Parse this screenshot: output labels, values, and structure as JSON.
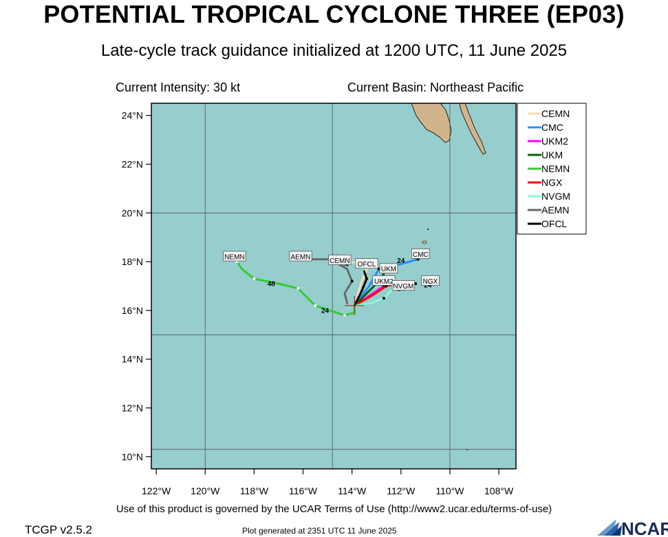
{
  "header": {
    "title": "POTENTIAL TROPICAL CYCLONE THREE (EP03)",
    "subtitle": "Late-cycle track guidance initialized at 1200 UTC, 11 June 2025",
    "current_intensity": "Current Intensity: 30 kt",
    "current_basin": "Current Basin: Northeast Pacific"
  },
  "footer": {
    "terms": "Use of this product is governed by the UCAR Terms of Use (http://www2.ucar.edu/terms-of-use)",
    "version": "TCGP v2.5.2",
    "generated": "Plot generated at 2351 UTC   11 June 2025",
    "logo_text": "NCAR"
  },
  "colors": {
    "ocean": "#96cdcd",
    "land": "#d2b48c",
    "grid": "#555555"
  },
  "chart_data": {
    "type": "line",
    "lon_range": [
      -122.2,
      -107.3
    ],
    "lat_range": [
      9.5,
      24.5
    ],
    "x_ticks": [
      {
        "value": -122,
        "label": "122°W"
      },
      {
        "value": -120,
        "label": "120°W"
      },
      {
        "value": -118,
        "label": "118°W"
      },
      {
        "value": -116,
        "label": "116°W"
      },
      {
        "value": -114,
        "label": "114°W"
      },
      {
        "value": -112,
        "label": "112°W"
      },
      {
        "value": -110,
        "label": "110°W"
      },
      {
        "value": -108,
        "label": "108°W"
      }
    ],
    "y_ticks": [
      {
        "value": 10,
        "label": "10°N"
      },
      {
        "value": 12,
        "label": "12°N"
      },
      {
        "value": 14,
        "label": "14°N"
      },
      {
        "value": 16,
        "label": "16°N"
      },
      {
        "value": 18,
        "label": "18°N"
      },
      {
        "value": 20,
        "label": "20°N"
      },
      {
        "value": 22,
        "label": "22°N"
      },
      {
        "value": 24,
        "label": "24°N"
      }
    ],
    "grid_lons": [
      -120,
      -114.8,
      -110
    ],
    "grid_lats": [
      10.3,
      15.0,
      20.0
    ],
    "initial_position": {
      "lon": -113.9,
      "lat": 16.2
    },
    "series": [
      {
        "name": "CEMN",
        "color": "#f5deb3",
        "points": [
          {
            "lon": -113.9,
            "lat": 16.2
          },
          {
            "lon": -113.6,
            "lat": 17.2
          },
          {
            "lon": -113.3,
            "lat": 17.9
          },
          {
            "lon": -114.2,
            "lat": 18.0
          }
        ],
        "label": "CEMN",
        "hour_labels": [
          {
            "text": "24",
            "lon": -114.3,
            "lat": 17.8
          }
        ]
      },
      {
        "name": "CMC",
        "color": "#1e90ff",
        "points": [
          {
            "lon": -113.9,
            "lat": 16.2
          },
          {
            "lon": -113.3,
            "lat": 17.0
          },
          {
            "lon": -112.9,
            "lat": 17.7
          },
          {
            "lon": -112.0,
            "lat": 17.9
          },
          {
            "lon": -111.3,
            "lat": 18.1
          }
        ],
        "label": "CMC",
        "hour_labels": [
          {
            "text": "24",
            "lon": -112.0,
            "lat": 17.95
          }
        ]
      },
      {
        "name": "UKM2",
        "color": "#ff00ff",
        "points": [
          {
            "lon": -113.9,
            "lat": 16.2
          },
          {
            "lon": -113.3,
            "lat": 16.6
          },
          {
            "lon": -112.7,
            "lat": 17.0
          },
          {
            "lon": -112.4,
            "lat": 17.1
          }
        ],
        "label": "UKM2",
        "hour_labels": []
      },
      {
        "name": "UKM",
        "color": "#006400",
        "points": [
          {
            "lon": -113.9,
            "lat": 16.2
          },
          {
            "lon": -113.5,
            "lat": 16.6
          },
          {
            "lon": -113.0,
            "lat": 17.1
          },
          {
            "lon": -112.7,
            "lat": 17.5
          }
        ],
        "label": "UKM",
        "hour_labels": []
      },
      {
        "name": "NEMN",
        "color": "#32cd32",
        "points": [
          {
            "lon": -113.9,
            "lat": 16.2
          },
          {
            "lon": -113.9,
            "lat": 15.9
          },
          {
            "lon": -114.3,
            "lat": 15.8
          },
          {
            "lon": -114.9,
            "lat": 16.0
          },
          {
            "lon": -115.5,
            "lat": 16.2
          },
          {
            "lon": -115.9,
            "lat": 16.6
          },
          {
            "lon": -116.2,
            "lat": 16.9
          },
          {
            "lon": -117.0,
            "lat": 17.1
          },
          {
            "lon": -118.0,
            "lat": 17.3
          },
          {
            "lon": -118.5,
            "lat": 17.7
          },
          {
            "lon": -118.7,
            "lat": 18.0
          }
        ],
        "label": "NEMN",
        "hour_labels": [
          {
            "text": "24",
            "lon": -115.1,
            "lat": 15.9
          },
          {
            "text": "48",
            "lon": -117.3,
            "lat": 17.0
          }
        ]
      },
      {
        "name": "NGX",
        "color": "#ff0000",
        "points": [
          {
            "lon": -113.9,
            "lat": 16.2
          },
          {
            "lon": -113.2,
            "lat": 16.6
          },
          {
            "lon": -112.6,
            "lat": 17.0
          },
          {
            "lon": -112.2,
            "lat": 17.1
          }
        ],
        "label": "NGX",
        "hour_labels": []
      },
      {
        "name": "NVGM",
        "color": "#7fffd4",
        "points": [
          {
            "lon": -113.9,
            "lat": 16.2
          },
          {
            "lon": -113.2,
            "lat": 16.3
          },
          {
            "lon": -112.7,
            "lat": 16.5
          },
          {
            "lon": -112.1,
            "lat": 17.1
          },
          {
            "lon": -111.4,
            "lat": 17.1
          }
        ],
        "label": "NVGM",
        "hour_labels": [
          {
            "text": "24",
            "lon": -112.0,
            "lat": 16.8
          },
          {
            "text": "24",
            "lon": -110.9,
            "lat": 16.95
          }
        ]
      },
      {
        "name": "AEMN",
        "color": "#696969",
        "points": [
          {
            "lon": -114.2,
            "lat": 16.3
          },
          {
            "lon": -114.3,
            "lat": 16.7
          },
          {
            "lon": -114.0,
            "lat": 17.2
          },
          {
            "lon": -114.2,
            "lat": 17.7
          },
          {
            "lon": -114.9,
            "lat": 18.1
          },
          {
            "lon": -115.8,
            "lat": 18.1
          }
        ],
        "label": "AEMN",
        "hour_labels": [
          {
            "text": "24",
            "lon": -114.7,
            "lat": 18.1
          }
        ]
      },
      {
        "name": "OFCL",
        "color": "#000000",
        "points": [
          {
            "lon": -113.9,
            "lat": 16.2
          },
          {
            "lon": -113.6,
            "lat": 16.8
          },
          {
            "lon": -113.4,
            "lat": 17.3
          },
          {
            "lon": -113.5,
            "lat": 17.6
          }
        ],
        "label": "OFCL",
        "hour_labels": [
          {
            "text": "24",
            "lon": -113.7,
            "lat": 17.75
          }
        ]
      }
    ],
    "track_labels": [
      {
        "text": "NEMN",
        "lon": -118.8,
        "lat": 18.2
      },
      {
        "text": "AEMN",
        "lon": -116.1,
        "lat": 18.2
      },
      {
        "text": "CEMN",
        "lon": -114.5,
        "lat": 18.05
      },
      {
        "text": "OFCL",
        "lon": -113.4,
        "lat": 17.9
      },
      {
        "text": "UKM",
        "lon": -112.5,
        "lat": 17.7
      },
      {
        "text": "CMC",
        "lon": -111.2,
        "lat": 18.3
      },
      {
        "text": "UKM2",
        "lon": -112.7,
        "lat": 17.2
      },
      {
        "text": "NGX",
        "lon": -110.8,
        "lat": 17.2
      },
      {
        "text": "NVGM",
        "lon": -111.9,
        "lat": 17.0
      }
    ],
    "legend": [
      "CEMN",
      "CMC",
      "UKM2",
      "UKM",
      "NEMN",
      "NGX",
      "NVGM",
      "AEMN",
      "OFCL"
    ],
    "legend_position": "right",
    "grid": true
  }
}
